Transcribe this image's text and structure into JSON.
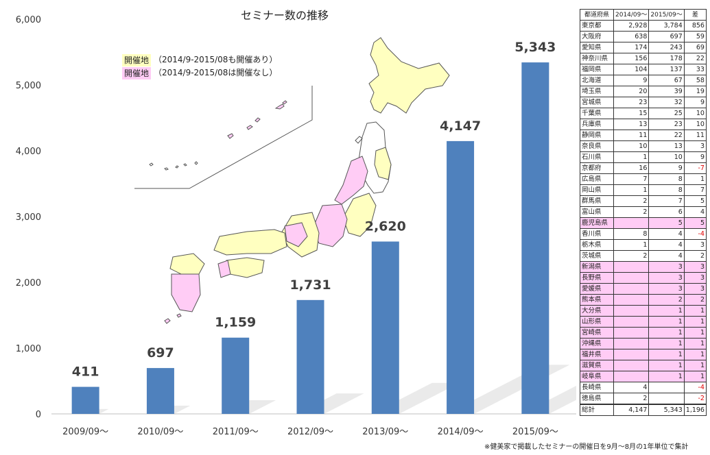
{
  "chart_data": {
    "type": "bar",
    "title": "セミナー数の推移",
    "categories": [
      "2009/09～",
      "2010/09～",
      "2011/09～",
      "2012/09～",
      "2013/09～",
      "2014/09～",
      "2015/09～"
    ],
    "values": [
      411,
      697,
      1159,
      1731,
      2620,
      4147,
      5343
    ],
    "data_labels": [
      "411",
      "697",
      "1,159",
      "1,731",
      "2,620",
      "4,147",
      "5,343"
    ],
    "ylim": [
      0,
      6000
    ],
    "yticks": [
      "0",
      "1,000",
      "2,000",
      "3,000",
      "4,000",
      "5,000",
      "6,000"
    ],
    "bar_color": "#4f81bd",
    "grid": false
  },
  "legend": {
    "held_tag": "開催地",
    "held_text": "（2014/9-2015/08も開催あり）",
    "held_color": "#ffffc0",
    "new_tag": "開催地",
    "new_text": "（2014/9-2015/08は開催なし）",
    "new_color": "#ffccf5"
  },
  "table": {
    "headers": [
      "都道府県",
      "2014/09～",
      "2015/09～",
      "差"
    ],
    "rows": [
      {
        "name": "東京都",
        "a": "2,928",
        "b": "3,784",
        "d": "856"
      },
      {
        "name": "大阪府",
        "a": "638",
        "b": "697",
        "d": "59"
      },
      {
        "name": "愛知県",
        "a": "174",
        "b": "243",
        "d": "69"
      },
      {
        "name": "神奈川県",
        "a": "156",
        "b": "178",
        "d": "22"
      },
      {
        "name": "福岡県",
        "a": "104",
        "b": "137",
        "d": "33"
      },
      {
        "name": "北海道",
        "a": "9",
        "b": "67",
        "d": "58"
      },
      {
        "name": "埼玉県",
        "a": "20",
        "b": "39",
        "d": "19"
      },
      {
        "name": "宮城県",
        "a": "23",
        "b": "32",
        "d": "9"
      },
      {
        "name": "千葉県",
        "a": "15",
        "b": "25",
        "d": "10"
      },
      {
        "name": "兵庫県",
        "a": "13",
        "b": "23",
        "d": "10"
      },
      {
        "name": "静岡県",
        "a": "11",
        "b": "22",
        "d": "11"
      },
      {
        "name": "奈良県",
        "a": "10",
        "b": "13",
        "d": "3"
      },
      {
        "name": "石川県",
        "a": "1",
        "b": "10",
        "d": "9"
      },
      {
        "name": "京都府",
        "a": "16",
        "b": "9",
        "d": "-7"
      },
      {
        "name": "広島県",
        "a": "7",
        "b": "8",
        "d": "1"
      },
      {
        "name": "岡山県",
        "a": "1",
        "b": "8",
        "d": "7"
      },
      {
        "name": "群馬県",
        "a": "2",
        "b": "7",
        "d": "5"
      },
      {
        "name": "富山県",
        "a": "2",
        "b": "6",
        "d": "4"
      },
      {
        "name": "鹿児島県",
        "a": "",
        "b": "5",
        "d": "5"
      },
      {
        "name": "香川県",
        "a": "8",
        "b": "4",
        "d": "-4"
      },
      {
        "name": "栃木県",
        "a": "1",
        "b": "4",
        "d": "3"
      },
      {
        "name": "茨城県",
        "a": "2",
        "b": "4",
        "d": "2"
      },
      {
        "name": "新潟県",
        "a": "",
        "b": "3",
        "d": "3"
      },
      {
        "name": "長野県",
        "a": "",
        "b": "3",
        "d": "3"
      },
      {
        "name": "愛媛県",
        "a": "",
        "b": "3",
        "d": "3"
      },
      {
        "name": "熊本県",
        "a": "",
        "b": "2",
        "d": "2"
      },
      {
        "name": "大分県",
        "a": "",
        "b": "1",
        "d": "1"
      },
      {
        "name": "山形県",
        "a": "",
        "b": "1",
        "d": "1"
      },
      {
        "name": "宮崎県",
        "a": "",
        "b": "1",
        "d": "1"
      },
      {
        "name": "沖縄県",
        "a": "",
        "b": "1",
        "d": "1"
      },
      {
        "name": "福井県",
        "a": "",
        "b": "1",
        "d": "1"
      },
      {
        "name": "滋賀県",
        "a": "",
        "b": "1",
        "d": "1"
      },
      {
        "name": "岐阜県",
        "a": "",
        "b": "1",
        "d": "1"
      },
      {
        "name": "長崎県",
        "a": "4",
        "b": "",
        "d": "-4"
      },
      {
        "name": "徳島県",
        "a": "2",
        "b": "",
        "d": "-2"
      }
    ],
    "total": {
      "name": "総計",
      "a": "4,147",
      "b": "5,343",
      "d": "1,196"
    }
  },
  "footnote": "※健美家で掲載したセミナーの開催日を9月～8月の1年単位で集計"
}
